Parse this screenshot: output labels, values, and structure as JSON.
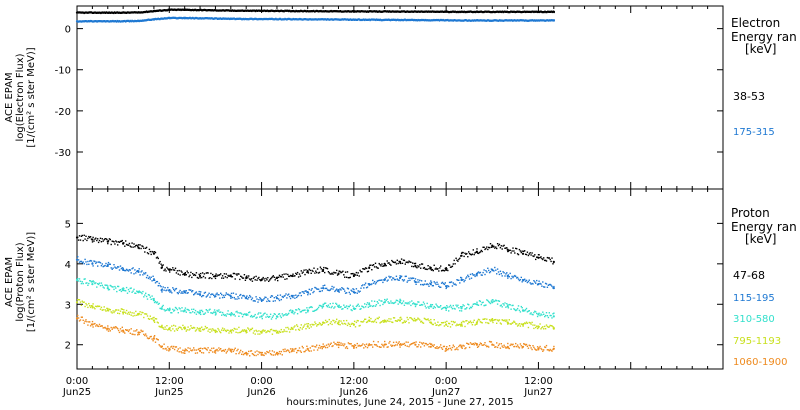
{
  "chart_data": [
    {
      "type": "line",
      "panel": "electron",
      "ylabel_lines": [
        "ACE EPAM",
        "log(Electron Flux)",
        "[1/(cm² s ster MeV)]"
      ],
      "ylim": [
        -39,
        5.5
      ],
      "yticks": [
        0,
        -10,
        -20,
        -30
      ],
      "legend_title": "Electron",
      "legend_subtitle": "Energy ran",
      "legend_unit": "[keV]",
      "series": [
        {
          "name": "38-53",
          "color": "#000000",
          "x": [
            0,
            6,
            8,
            10,
            12,
            14,
            20,
            36,
            52,
            62
          ],
          "y": [
            3.9,
            3.9,
            3.95,
            4.3,
            4.6,
            4.6,
            4.4,
            4.2,
            4.1,
            4.1
          ]
        },
        {
          "name": "175-315",
          "color": "#1e78d2",
          "x": [
            0,
            6,
            8,
            10,
            12,
            14,
            20,
            36,
            52,
            62
          ],
          "y": [
            1.8,
            1.8,
            1.9,
            2.3,
            2.6,
            2.6,
            2.4,
            2.2,
            2.0,
            2.0
          ]
        }
      ]
    },
    {
      "type": "scatter",
      "panel": "proton",
      "ylabel_lines": [
        "ACE EPAM",
        "log(Proton Flux)",
        "[1/(cm² s ster MeV)]"
      ],
      "ylim": [
        1.4,
        5.85
      ],
      "yticks": [
        2,
        3,
        4,
        5
      ],
      "legend_title": "Proton",
      "legend_subtitle": "Energy ran",
      "legend_unit": "[keV]",
      "series": [
        {
          "name": "47-68",
          "color": "#000000",
          "x": [
            0,
            2,
            4,
            6,
            8,
            10,
            11,
            12,
            14,
            16,
            18,
            20,
            22,
            24,
            26,
            28,
            30,
            32,
            34,
            36,
            38,
            40,
            42,
            44,
            46,
            48,
            50,
            52,
            54,
            56,
            58,
            60,
            62
          ],
          "y": [
            4.65,
            4.6,
            4.55,
            4.5,
            4.4,
            4.25,
            3.9,
            3.85,
            3.75,
            3.7,
            3.7,
            3.7,
            3.65,
            3.6,
            3.65,
            3.7,
            3.8,
            3.85,
            3.75,
            3.7,
            3.9,
            4.0,
            4.05,
            3.95,
            3.9,
            3.85,
            4.2,
            4.3,
            4.45,
            4.35,
            4.25,
            4.15,
            4.05
          ]
        },
        {
          "name": "115-195",
          "color": "#1e78d2",
          "x": [
            0,
            2,
            4,
            6,
            8,
            10,
            11,
            12,
            14,
            16,
            18,
            20,
            22,
            24,
            26,
            28,
            30,
            32,
            34,
            36,
            38,
            40,
            42,
            44,
            46,
            48,
            50,
            52,
            54,
            56,
            58,
            60,
            62
          ],
          "y": [
            4.1,
            4.0,
            3.95,
            3.85,
            3.8,
            3.6,
            3.35,
            3.35,
            3.3,
            3.25,
            3.2,
            3.2,
            3.15,
            3.1,
            3.15,
            3.2,
            3.3,
            3.4,
            3.35,
            3.3,
            3.5,
            3.6,
            3.65,
            3.55,
            3.5,
            3.45,
            3.6,
            3.75,
            3.85,
            3.7,
            3.6,
            3.5,
            3.4
          ]
        },
        {
          "name": "310-580",
          "color": "#33e0cc",
          "x": [
            0,
            2,
            4,
            6,
            8,
            10,
            11,
            12,
            14,
            16,
            18,
            20,
            22,
            24,
            26,
            28,
            30,
            32,
            34,
            36,
            38,
            40,
            42,
            44,
            46,
            48,
            50,
            52,
            54,
            56,
            58,
            60,
            62
          ],
          "y": [
            3.6,
            3.5,
            3.4,
            3.35,
            3.3,
            3.1,
            2.9,
            2.85,
            2.85,
            2.8,
            2.8,
            2.75,
            2.75,
            2.7,
            2.7,
            2.8,
            2.85,
            2.95,
            2.95,
            2.9,
            3.0,
            3.05,
            3.05,
            3.0,
            2.95,
            2.9,
            2.9,
            3.0,
            3.05,
            2.95,
            2.85,
            2.75,
            2.7
          ]
        },
        {
          "name": "795-1193",
          "color": "#c8e01e",
          "x": [
            0,
            2,
            4,
            6,
            8,
            10,
            11,
            12,
            14,
            16,
            18,
            20,
            22,
            24,
            26,
            28,
            30,
            32,
            34,
            36,
            38,
            40,
            42,
            44,
            46,
            48,
            50,
            52,
            54,
            56,
            58,
            60,
            62
          ],
          "y": [
            3.05,
            2.95,
            2.85,
            2.8,
            2.75,
            2.6,
            2.45,
            2.4,
            2.4,
            2.4,
            2.35,
            2.35,
            2.35,
            2.3,
            2.3,
            2.4,
            2.45,
            2.55,
            2.55,
            2.5,
            2.6,
            2.6,
            2.6,
            2.6,
            2.55,
            2.5,
            2.5,
            2.55,
            2.6,
            2.55,
            2.5,
            2.45,
            2.4
          ]
        },
        {
          "name": "1060-1900",
          "color": "#ee8a1e",
          "x": [
            0,
            2,
            4,
            6,
            8,
            10,
            11,
            12,
            14,
            16,
            18,
            20,
            22,
            24,
            26,
            28,
            30,
            32,
            34,
            36,
            38,
            40,
            42,
            44,
            46,
            48,
            50,
            52,
            54,
            56,
            58,
            60,
            62
          ],
          "y": [
            2.65,
            2.5,
            2.4,
            2.35,
            2.3,
            2.15,
            1.95,
            1.9,
            1.85,
            1.85,
            1.85,
            1.85,
            1.8,
            1.75,
            1.8,
            1.85,
            1.9,
            1.95,
            2.0,
            1.95,
            2.0,
            2.0,
            2.0,
            2.0,
            1.95,
            1.9,
            1.95,
            2.0,
            2.0,
            1.95,
            1.95,
            1.9,
            1.9
          ]
        }
      ]
    }
  ],
  "xaxis": {
    "xlim": [
      0,
      84
    ],
    "xlabel": "hours:minutes, June 24, 2015 - June 27, 2015",
    "tick_labels": [
      {
        "x": 0,
        "time": "0:00",
        "date": "Jun25"
      },
      {
        "x": 12,
        "time": "12:00",
        "date": "Jun25"
      },
      {
        "x": 24,
        "time": "0:00",
        "date": "Jun26"
      },
      {
        "x": 36,
        "time": "12:00",
        "date": "Jun26"
      },
      {
        "x": 48,
        "time": "0:00",
        "date": "Jun27"
      },
      {
        "x": 60,
        "time": "12:00",
        "date": "Jun27"
      }
    ]
  }
}
